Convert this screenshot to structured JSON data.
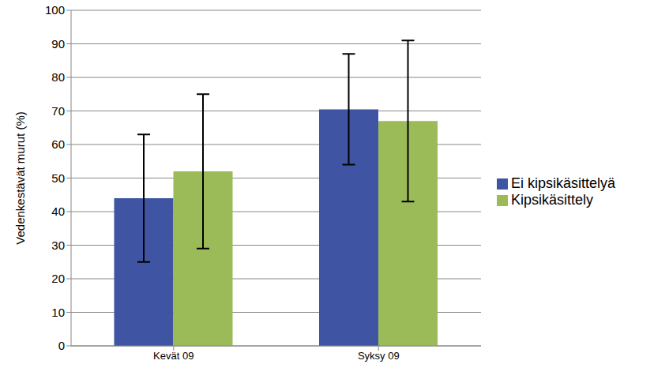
{
  "chart_data": {
    "type": "bar",
    "y_label": "Vedenkestävät murut (%)",
    "categories": [
      "Kevät 09",
      "Syksy 09"
    ],
    "series": [
      {
        "name": "Ei kipsikäsittelyä",
        "color": "#3F55A3",
        "values": [
          44,
          70.5
        ],
        "errors": [
          19,
          16.5
        ]
      },
      {
        "name": "Kipsikäsittely",
        "color": "#9BBB59",
        "values": [
          52,
          67
        ],
        "errors": [
          23,
          24
        ]
      }
    ],
    "ylim": [
      0,
      100
    ],
    "yticks": [
      0,
      10,
      20,
      30,
      40,
      50,
      60,
      70,
      80,
      90,
      100
    ],
    "grid": true,
    "legend": "right"
  }
}
